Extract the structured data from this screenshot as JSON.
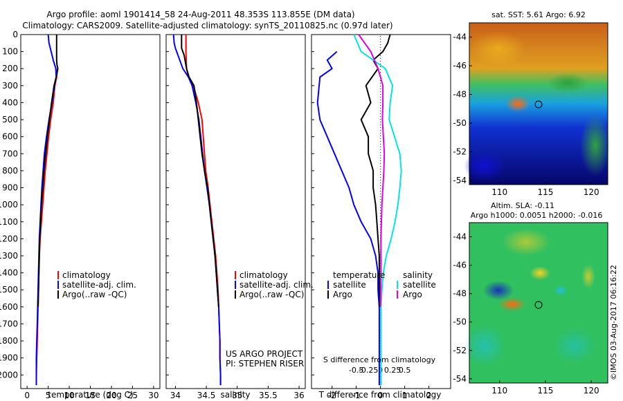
{
  "header": {
    "title_line1": "Argo profile: aoml 1901414_58 24-Aug-2011 48.353S 113.855E (DM data)",
    "title_line2": "Climatology: CARS2009. Satellite-adjusted climatology: synTS_20110825.nc (0.97d later)"
  },
  "map_sst": {
    "title": "sat. SST: 5.61  Argo: 6.92",
    "x_ticks": [
      "110",
      "115",
      "120"
    ],
    "y_ticks": [
      "-44",
      "-46",
      "-48",
      "-50",
      "-52",
      "-54"
    ]
  },
  "map_sla": {
    "title_line1": "Altim. SLA: -0.11",
    "title_line2": "Argo h1000: 0.0051 h2000: -0.016",
    "x_ticks": [
      "110",
      "115",
      "120"
    ],
    "y_ticks": [
      "-44",
      "-46",
      "-48",
      "-50",
      "-52",
      "-54"
    ]
  },
  "side_stamp": "©IMOS 03-Aug-2017 06:16:22",
  "project": {
    "line1": "US ARGO PROJECT",
    "line2": "PI: STEPHEN RISER"
  },
  "legend_left": {
    "clim": "climatology",
    "sat": "satellite-adj. clim.",
    "argo": "Argo(..raw -QC)"
  },
  "legend_right": {
    "temp_head": "temperature",
    "sal_head": "salinity",
    "sat": "satellite",
    "argo": "Argo",
    "sat2": "satellite",
    "argo2": "Argo"
  },
  "colors": {
    "clim": "#ff0000",
    "sat": "#0000ff",
    "argo": "#000000",
    "cyan": "#00e5e5",
    "magenta": "#e000e0"
  },
  "chart_data": [
    {
      "type": "line",
      "xlabel": "temperature (deg C)",
      "ylim": [
        2080,
        0
      ],
      "xlim": [
        -1.5,
        31.5
      ],
      "x_ticks": [
        0,
        5,
        10,
        15,
        20,
        25,
        30
      ],
      "y_ticks": [
        0,
        100,
        200,
        300,
        400,
        500,
        600,
        700,
        800,
        900,
        1000,
        1100,
        1200,
        1300,
        1400,
        1500,
        1600,
        1700,
        1800,
        1900,
        2000
      ],
      "series": [
        {
          "name": "climatology",
          "color": "#ff0000",
          "points": [
            [
              7.2,
              200
            ],
            [
              7.0,
              250
            ],
            [
              6.6,
              300
            ],
            [
              6.2,
              400
            ],
            [
              5.6,
              500
            ],
            [
              5.1,
              600
            ],
            [
              4.7,
              700
            ],
            [
              4.3,
              800
            ],
            [
              4.0,
              900
            ],
            [
              3.7,
              1000
            ],
            [
              3.4,
              1100
            ],
            [
              3.1,
              1200
            ],
            [
              2.9,
              1300
            ],
            [
              2.8,
              1400
            ],
            [
              2.7,
              1500
            ],
            [
              2.6,
              1600
            ],
            [
              2.5,
              1700
            ],
            [
              2.4,
              1800
            ],
            [
              2.3,
              1900
            ],
            [
              2.2,
              2000
            ],
            [
              2.2,
              2060
            ]
          ]
        },
        {
          "name": "satellite-adj. clim.",
          "color": "#0000ff",
          "points": [
            [
              5.0,
              0
            ],
            [
              5.2,
              50
            ],
            [
              5.7,
              100
            ],
            [
              6.2,
              150
            ],
            [
              6.8,
              200
            ],
            [
              6.9,
              250
            ],
            [
              6.5,
              300
            ],
            [
              5.9,
              400
            ],
            [
              5.2,
              500
            ],
            [
              4.6,
              600
            ],
            [
              4.1,
              700
            ],
            [
              3.8,
              800
            ],
            [
              3.5,
              900
            ],
            [
              3.3,
              1000
            ],
            [
              3.1,
              1100
            ],
            [
              2.9,
              1200
            ],
            [
              2.8,
              1300
            ],
            [
              2.7,
              1400
            ],
            [
              2.6,
              1500
            ],
            [
              2.5,
              1600
            ],
            [
              2.4,
              1700
            ],
            [
              2.3,
              1800
            ],
            [
              2.2,
              1900
            ],
            [
              2.2,
              2000
            ],
            [
              2.2,
              2060
            ]
          ]
        },
        {
          "name": "Argo(..raw -QC)",
          "color": "#000000",
          "points": [
            [
              7.0,
              0
            ],
            [
              7.0,
              50
            ],
            [
              7.0,
              100
            ],
            [
              7.0,
              150
            ],
            [
              7.1,
              180
            ],
            [
              7.3,
              200
            ],
            [
              6.9,
              250
            ],
            [
              6.4,
              300
            ],
            [
              5.8,
              400
            ],
            [
              5.3,
              500
            ],
            [
              4.8,
              600
            ],
            [
              4.4,
              700
            ],
            [
              4.0,
              800
            ],
            [
              3.7,
              900
            ],
            [
              3.4,
              1000
            ],
            [
              3.2,
              1100
            ],
            [
              3.0,
              1200
            ],
            [
              2.9,
              1300
            ],
            [
              2.8,
              1400
            ],
            [
              2.7,
              1500
            ],
            [
              2.6,
              1600
            ]
          ]
        }
      ]
    },
    {
      "type": "line",
      "xlabel": "salinity",
      "ylim": [
        2080,
        0
      ],
      "xlim": [
        33.85,
        36.1
      ],
      "x_ticks": [
        34,
        34.5,
        35,
        35.5,
        36
      ],
      "series": [
        {
          "name": "climatology",
          "color": "#ff0000",
          "points": [
            [
              34.17,
              0
            ],
            [
              34.17,
              50
            ],
            [
              34.17,
              100
            ],
            [
              34.18,
              200
            ],
            [
              34.21,
              250
            ],
            [
              34.29,
              300
            ],
            [
              34.37,
              400
            ],
            [
              34.43,
              500
            ],
            [
              34.45,
              600
            ],
            [
              34.47,
              700
            ],
            [
              34.49,
              800
            ],
            [
              34.53,
              900
            ],
            [
              34.56,
              1000
            ],
            [
              34.59,
              1100
            ],
            [
              34.62,
              1200
            ],
            [
              34.65,
              1300
            ],
            [
              34.67,
              1400
            ],
            [
              34.69,
              1500
            ],
            [
              34.7,
              1600
            ],
            [
              34.71,
              1700
            ],
            [
              34.72,
              1800
            ],
            [
              34.72,
              1900
            ],
            [
              34.73,
              2000
            ],
            [
              34.73,
              2060
            ]
          ]
        },
        {
          "name": "satellite-adj. clim.",
          "color": "#0000ff",
          "points": [
            [
              33.97,
              0
            ],
            [
              33.98,
              50
            ],
            [
              34.0,
              80
            ],
            [
              34.02,
              100
            ],
            [
              34.12,
              200
            ],
            [
              34.21,
              250
            ],
            [
              34.27,
              300
            ],
            [
              34.33,
              400
            ],
            [
              34.38,
              500
            ],
            [
              34.41,
              600
            ],
            [
              34.44,
              700
            ],
            [
              34.47,
              800
            ],
            [
              34.51,
              900
            ],
            [
              34.55,
              1000
            ],
            [
              34.58,
              1100
            ],
            [
              34.61,
              1200
            ],
            [
              34.64,
              1300
            ],
            [
              34.66,
              1400
            ],
            [
              34.68,
              1500
            ],
            [
              34.7,
              1600
            ],
            [
              34.71,
              1700
            ],
            [
              34.72,
              1800
            ],
            [
              34.72,
              1900
            ],
            [
              34.73,
              2000
            ],
            [
              34.73,
              2060
            ]
          ]
        },
        {
          "name": "Argo(..raw -QC)",
          "color": "#000000",
          "points": [
            [
              34.1,
              0
            ],
            [
              34.1,
              80
            ],
            [
              34.14,
              120
            ],
            [
              34.18,
              200
            ],
            [
              34.22,
              250
            ],
            [
              34.3,
              300
            ],
            [
              34.34,
              400
            ],
            [
              34.37,
              500
            ],
            [
              34.4,
              600
            ],
            [
              34.43,
              700
            ],
            [
              34.47,
              800
            ],
            [
              34.52,
              900
            ],
            [
              34.55,
              1000
            ],
            [
              34.58,
              1100
            ],
            [
              34.61,
              1200
            ],
            [
              34.64,
              1300
            ],
            [
              34.66,
              1400
            ],
            [
              34.68,
              1500
            ],
            [
              34.7,
              1600
            ]
          ]
        }
      ]
    },
    {
      "type": "line",
      "xlabel": "T difference from climatology",
      "xlabel_top": "S difference from climatology",
      "ylim": [
        2080,
        0
      ],
      "xlim": [
        -2.85,
        2.9
      ],
      "x_ticks": [
        -2,
        -1,
        0,
        1,
        2
      ],
      "x_ticks_top": [
        "-0.5",
        "-0.25",
        "0",
        "0.25",
        "0.5"
      ],
      "series": [
        {
          "name": "temperature satellite",
          "color": "#0000ff",
          "points": [
            [
              -1.8,
              100
            ],
            [
              -2.2,
              150
            ],
            [
              -2.0,
              200
            ],
            [
              -2.5,
              250
            ],
            [
              -2.6,
              400
            ],
            [
              -2.5,
              500
            ],
            [
              -2.2,
              600
            ],
            [
              -1.9,
              700
            ],
            [
              -1.6,
              800
            ],
            [
              -1.3,
              900
            ],
            [
              -1.1,
              1000
            ],
            [
              -0.8,
              1100
            ],
            [
              -0.4,
              1200
            ],
            [
              -0.2,
              1300
            ],
            [
              -0.1,
              1400
            ],
            [
              -0.1,
              1500
            ],
            [
              -0.05,
              1600
            ],
            [
              -0.05,
              1700
            ],
            [
              -0.05,
              1800
            ],
            [
              -0.05,
              1900
            ],
            [
              -0.05,
              2000
            ],
            [
              -0.05,
              2060
            ]
          ]
        },
        {
          "name": "temperature Argo",
          "color": "#000000",
          "points": [
            [
              0.4,
              0
            ],
            [
              0.3,
              50
            ],
            [
              0.1,
              100
            ],
            [
              -0.3,
              150
            ],
            [
              -0.1,
              200
            ],
            [
              -0.6,
              300
            ],
            [
              -0.4,
              400
            ],
            [
              -0.8,
              500
            ],
            [
              -0.5,
              600
            ],
            [
              -0.5,
              700
            ],
            [
              -0.3,
              800
            ],
            [
              -0.3,
              900
            ],
            [
              -0.2,
              1000
            ],
            [
              -0.15,
              1100
            ],
            [
              -0.1,
              1200
            ],
            [
              -0.05,
              1300
            ],
            [
              -0.05,
              1400
            ],
            [
              -0.05,
              1500
            ],
            [
              -0.05,
              1600
            ]
          ]
        },
        {
          "name": "salinity satellite",
          "color": "#00e5e5",
          "points": [
            [
              -0.55,
              0
            ],
            [
              -0.4,
              100
            ],
            [
              0.1,
              200
            ],
            [
              0.25,
              300
            ],
            [
              0.2,
              400
            ],
            [
              0.18,
              500
            ],
            [
              0.4,
              700
            ],
            [
              0.43,
              800
            ],
            [
              0.4,
              900
            ],
            [
              0.36,
              1000
            ],
            [
              0.3,
              1100
            ],
            [
              0.22,
              1200
            ],
            [
              0.12,
              1300
            ],
            [
              0.06,
              1400
            ],
            [
              0.03,
              1500
            ],
            [
              0.01,
              1600
            ],
            [
              0.01,
              1800
            ],
            [
              0.01,
              2000
            ],
            [
              0.01,
              2060
            ]
          ]
        },
        {
          "name": "salinity Argo",
          "color": "#e000e0",
          "points": [
            [
              -0.45,
              0
            ],
            [
              -0.2,
              100
            ],
            [
              -0.05,
              200
            ],
            [
              0.05,
              300
            ],
            [
              0.05,
              400
            ],
            [
              0.04,
              500
            ],
            [
              0.08,
              700
            ],
            [
              0.07,
              800
            ],
            [
              0.05,
              900
            ],
            [
              0.03,
              1000
            ],
            [
              0.02,
              1100
            ],
            [
              0.01,
              1200
            ],
            [
              0.01,
              1400
            ],
            [
              0.0,
              1600
            ]
          ]
        }
      ]
    }
  ]
}
